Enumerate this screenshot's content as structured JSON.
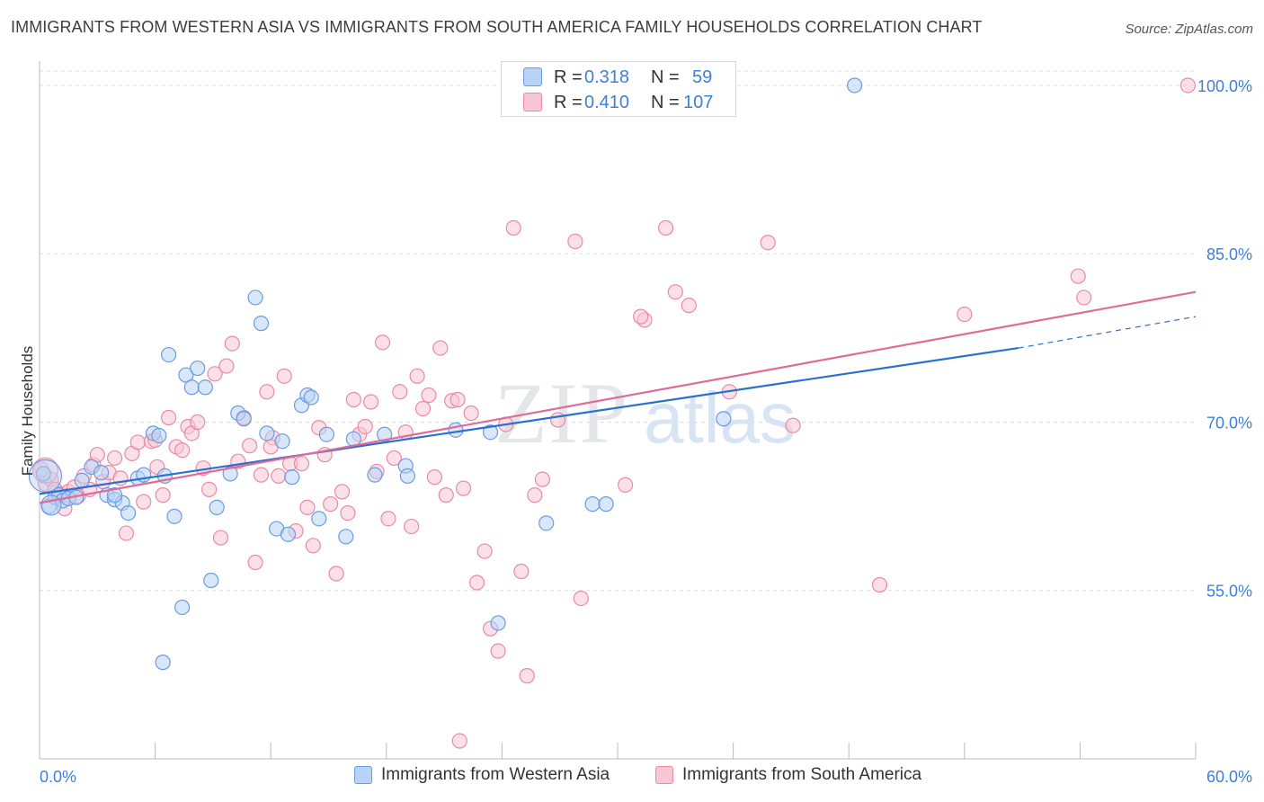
{
  "header": {
    "title": "IMMIGRANTS FROM WESTERN ASIA VS IMMIGRANTS FROM SOUTH AMERICA FAMILY HOUSEHOLDS CORRELATION CHART",
    "source": "Source: ZipAtlas.com"
  },
  "watermark": {
    "zip": "ZIP",
    "atlas": "atlas"
  },
  "stats": [
    {
      "r_label": "R =",
      "r_value": "0.318",
      "n_label": "N =",
      "n_value": "59"
    },
    {
      "r_label": "R =",
      "r_value": "0.410",
      "n_label": "N =",
      "n_value": "107"
    }
  ],
  "colors": {
    "blue_fill": "#b8d3f5",
    "blue_stroke": "#6b9be0",
    "blue_line": "#2b6fd1",
    "pink_fill": "#f9c6d4",
    "pink_stroke": "#e98aa6",
    "pink_line": "#e06b96",
    "tick_label": "#3f7fd6",
    "grid": "#dddddd"
  },
  "chart_data": {
    "type": "scatter",
    "title": "IMMIGRANTS FROM WESTERN ASIA VS IMMIGRANTS FROM SOUTH AMERICA FAMILY HOUSEHOLDS CORRELATION CHART",
    "xlabel": "",
    "ylabel": "Family Households",
    "xlim": [
      0,
      60
    ],
    "ylim": [
      40,
      102
    ],
    "x_tick_labels": [
      "0.0%",
      "60.0%"
    ],
    "y_ticks": [
      55,
      70,
      85,
      100
    ],
    "y_tick_labels": [
      "55.0%",
      "70.0%",
      "85.0%",
      "100.0%"
    ],
    "grid": true,
    "legend_position": "bottom",
    "series": [
      {
        "name": "Immigrants from Western Asia",
        "color": "#6b9be0",
        "trendline": {
          "x": [
            0,
            50.8
          ],
          "y": [
            63.6,
            76.6
          ],
          "dashed_extension_to": [
            60,
            79.4
          ]
        },
        "points": [
          [
            0.2,
            65.4
          ],
          [
            0.5,
            62.5
          ],
          [
            0.8,
            63.3
          ],
          [
            1.0,
            63.5
          ],
          [
            1.2,
            63.0
          ],
          [
            1.5,
            63.2
          ],
          [
            1.9,
            63.3
          ],
          [
            2.2,
            64.8
          ],
          [
            2.7,
            66.0
          ],
          [
            3.2,
            65.5
          ],
          [
            3.5,
            63.5
          ],
          [
            3.9,
            63.1
          ],
          [
            4.3,
            62.8
          ],
          [
            4.6,
            61.9
          ],
          [
            5.1,
            65.0
          ],
          [
            5.4,
            65.3
          ],
          [
            5.9,
            69.0
          ],
          [
            6.2,
            68.8
          ],
          [
            6.5,
            65.2
          ],
          [
            6.7,
            76.0
          ],
          [
            7.0,
            61.6
          ],
          [
            7.4,
            53.5
          ],
          [
            7.6,
            74.2
          ],
          [
            7.9,
            73.1
          ],
          [
            8.2,
            74.8
          ],
          [
            8.6,
            73.1
          ],
          [
            8.9,
            55.9
          ],
          [
            9.2,
            62.4
          ],
          [
            9.9,
            65.4
          ],
          [
            10.3,
            70.8
          ],
          [
            10.6,
            70.3
          ],
          [
            11.2,
            81.1
          ],
          [
            11.5,
            78.8
          ],
          [
            11.8,
            69.0
          ],
          [
            12.3,
            60.5
          ],
          [
            12.6,
            68.3
          ],
          [
            12.9,
            60.0
          ],
          [
            13.1,
            65.1
          ],
          [
            13.6,
            71.5
          ],
          [
            13.9,
            72.4
          ],
          [
            14.1,
            72.2
          ],
          [
            14.5,
            61.4
          ],
          [
            14.9,
            68.9
          ],
          [
            15.9,
            59.8
          ],
          [
            16.3,
            68.5
          ],
          [
            17.4,
            65.3
          ],
          [
            17.9,
            68.9
          ],
          [
            19.0,
            66.1
          ],
          [
            19.1,
            65.2
          ],
          [
            21.6,
            69.3
          ],
          [
            23.4,
            69.1
          ],
          [
            23.8,
            52.1
          ],
          [
            26.3,
            61.0
          ],
          [
            28.7,
            62.7
          ],
          [
            29.4,
            62.7
          ],
          [
            35.5,
            70.3
          ],
          [
            42.3,
            100.0
          ],
          [
            6.4,
            48.6
          ],
          [
            3.9,
            63.5
          ]
        ]
      },
      {
        "name": "Immigrants from South America",
        "color": "#e98aa6",
        "trendline": {
          "x": [
            0,
            60
          ],
          "y": [
            62.8,
            81.6
          ]
        },
        "points": [
          [
            0.1,
            65.8
          ],
          [
            0.3,
            64.5
          ],
          [
            0.6,
            64.9
          ],
          [
            0.8,
            64.0
          ],
          [
            1.1,
            63.6
          ],
          [
            1.3,
            62.3
          ],
          [
            1.5,
            63.8
          ],
          [
            1.8,
            64.2
          ],
          [
            2.0,
            63.4
          ],
          [
            2.3,
            65.2
          ],
          [
            2.6,
            64.0
          ],
          [
            2.8,
            66.2
          ],
          [
            3.0,
            67.1
          ],
          [
            3.3,
            64.7
          ],
          [
            3.6,
            65.5
          ],
          [
            3.9,
            66.8
          ],
          [
            4.2,
            65.0
          ],
          [
            4.5,
            60.1
          ],
          [
            4.8,
            67.2
          ],
          [
            5.1,
            68.2
          ],
          [
            5.4,
            62.9
          ],
          [
            5.8,
            68.3
          ],
          [
            6.1,
            66.0
          ],
          [
            6.4,
            63.5
          ],
          [
            6.7,
            70.4
          ],
          [
            7.1,
            67.8
          ],
          [
            7.4,
            67.5
          ],
          [
            7.7,
            69.6
          ],
          [
            7.9,
            69.0
          ],
          [
            8.2,
            70.0
          ],
          [
            8.5,
            65.9
          ],
          [
            8.8,
            64.0
          ],
          [
            9.1,
            74.3
          ],
          [
            9.4,
            59.7
          ],
          [
            9.7,
            75.0
          ],
          [
            10.0,
            77.0
          ],
          [
            10.3,
            66.5
          ],
          [
            10.6,
            70.4
          ],
          [
            10.9,
            67.9
          ],
          [
            11.2,
            57.5
          ],
          [
            11.5,
            65.3
          ],
          [
            11.8,
            72.7
          ],
          [
            12.1,
            68.6
          ],
          [
            12.4,
            65.2
          ],
          [
            12.7,
            74.1
          ],
          [
            13.0,
            66.3
          ],
          [
            13.3,
            60.3
          ],
          [
            13.6,
            66.3
          ],
          [
            13.9,
            62.4
          ],
          [
            14.2,
            59.0
          ],
          [
            14.5,
            69.5
          ],
          [
            14.8,
            67.1
          ],
          [
            15.1,
            62.7
          ],
          [
            15.4,
            56.5
          ],
          [
            15.7,
            63.8
          ],
          [
            16.0,
            61.9
          ],
          [
            16.3,
            72.0
          ],
          [
            16.6,
            68.9
          ],
          [
            16.9,
            69.6
          ],
          [
            17.2,
            71.8
          ],
          [
            17.5,
            65.6
          ],
          [
            17.8,
            77.1
          ],
          [
            18.1,
            61.4
          ],
          [
            18.4,
            66.8
          ],
          [
            18.7,
            72.7
          ],
          [
            19.0,
            69.1
          ],
          [
            19.3,
            60.7
          ],
          [
            19.6,
            74.1
          ],
          [
            19.9,
            71.2
          ],
          [
            20.2,
            72.4
          ],
          [
            20.5,
            65.1
          ],
          [
            20.8,
            76.6
          ],
          [
            21.1,
            63.5
          ],
          [
            21.4,
            71.9
          ],
          [
            21.7,
            72.0
          ],
          [
            22.0,
            64.1
          ],
          [
            22.4,
            70.8
          ],
          [
            22.7,
            55.7
          ],
          [
            23.1,
            58.5
          ],
          [
            23.4,
            51.6
          ],
          [
            23.8,
            49.6
          ],
          [
            24.2,
            69.8
          ],
          [
            24.6,
            87.3
          ],
          [
            25.0,
            56.7
          ],
          [
            25.3,
            47.4
          ],
          [
            25.7,
            63.5
          ],
          [
            26.1,
            64.9
          ],
          [
            26.9,
            70.2
          ],
          [
            27.8,
            86.1
          ],
          [
            28.1,
            54.3
          ],
          [
            30.4,
            64.4
          ],
          [
            31.4,
            79.1
          ],
          [
            32.5,
            87.3
          ],
          [
            33.0,
            81.6
          ],
          [
            33.7,
            80.4
          ],
          [
            35.8,
            72.7
          ],
          [
            37.8,
            86.0
          ],
          [
            39.1,
            69.7
          ],
          [
            43.6,
            55.5
          ],
          [
            48.0,
            79.6
          ],
          [
            53.9,
            83.0
          ],
          [
            54.2,
            81.1
          ],
          [
            59.6,
            100.0
          ],
          [
            21.8,
            41.6
          ],
          [
            31.2,
            79.4
          ],
          [
            6.0,
            68.4
          ],
          [
            12.0,
            67.8
          ]
        ]
      }
    ]
  },
  "legend": {
    "items": [
      {
        "label": "Immigrants from Western Asia"
      },
      {
        "label": "Immigrants from South America"
      }
    ]
  }
}
